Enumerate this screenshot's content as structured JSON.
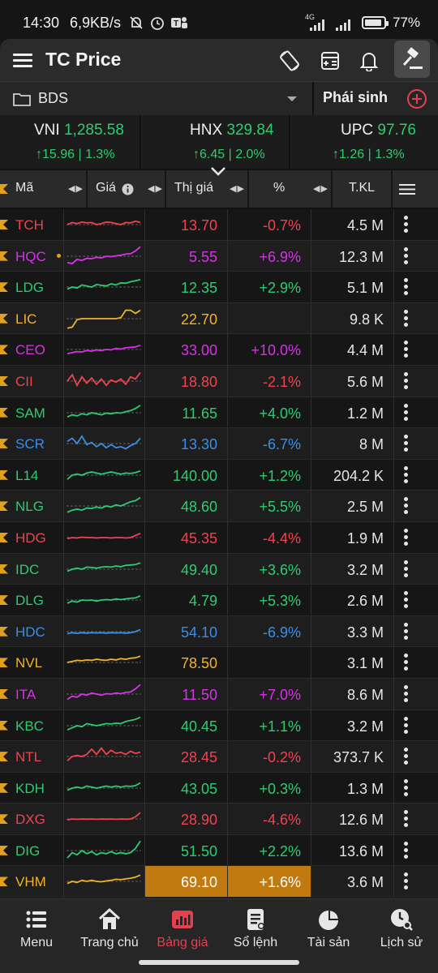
{
  "status_bar": {
    "time": "14:30",
    "speed": "6,9KB/s",
    "network": "4G",
    "battery": "77%"
  },
  "app_bar": {
    "title": "TC Price",
    "icons": [
      "menu-icon",
      "rotate-screen-icon",
      "calculator-icon",
      "bell-icon",
      "gavel-icon"
    ]
  },
  "group_bar": {
    "group_name": "BDS",
    "derivative_tab": "Phái sinh"
  },
  "indices": [
    {
      "name": "VNI",
      "value": "1,285.58",
      "change": "↑15.96 | 1.3%"
    },
    {
      "name": "HNX",
      "value": "329.84",
      "change": "↑6.45 | 2.0%"
    },
    {
      "name": "UPC",
      "value": "97.76",
      "change": "↑1.26 | 1.3%"
    }
  ],
  "table": {
    "headers": {
      "code": "Mã",
      "price_chart": "Giá",
      "market_price": "Thị giá",
      "pct": "%",
      "volume": "T.KL"
    },
    "rows": [
      {
        "code": "TCH",
        "price": "13.70",
        "pct": "-0.7%",
        "vol": "4.5 M",
        "color": "#f0434f",
        "trend": [
          0.5,
          0.6,
          0.55,
          0.62,
          0.58,
          0.6,
          0.5,
          0.55,
          0.62,
          0.6,
          0.55,
          0.5,
          0.6,
          0.58,
          0.66,
          0.6
        ]
      },
      {
        "code": "HQC",
        "price": "5.55",
        "pct": "+6.9%",
        "vol": "12.3 M",
        "color": "#d633e8",
        "dot": true,
        "trend": [
          0.2,
          0.15,
          0.35,
          0.3,
          0.4,
          0.38,
          0.45,
          0.42,
          0.5,
          0.48,
          0.52,
          0.55,
          0.6,
          0.62,
          0.75,
          0.95
        ]
      },
      {
        "code": "LDG",
        "price": "12.35",
        "pct": "+2.9%",
        "vol": "5.1 M",
        "color": "#2ecc71",
        "trend": [
          0.4,
          0.5,
          0.45,
          0.6,
          0.55,
          0.5,
          0.62,
          0.58,
          0.55,
          0.65,
          0.6,
          0.7,
          0.68,
          0.75,
          0.8,
          0.85
        ]
      },
      {
        "code": "LIC",
        "price": "22.70",
        "pct": "",
        "vol": "9.8 K",
        "color": "#f0b429",
        "trend": [
          0.05,
          0.1,
          0.45,
          0.5,
          0.5,
          0.5,
          0.5,
          0.5,
          0.5,
          0.5,
          0.5,
          0.55,
          0.9,
          0.9,
          0.75,
          0.9
        ]
      },
      {
        "code": "CEO",
        "price": "33.00",
        "pct": "+10.0%",
        "vol": "4.4 M",
        "color": "#d633e8",
        "trend": [
          0.3,
          0.35,
          0.4,
          0.38,
          0.45,
          0.42,
          0.48,
          0.45,
          0.5,
          0.48,
          0.55,
          0.52,
          0.58,
          0.6,
          0.62,
          0.7
        ]
      },
      {
        "code": "CII",
        "price": "18.80",
        "pct": "-2.1%",
        "vol": "5.6 M",
        "color": "#f0434f",
        "trend": [
          0.5,
          0.8,
          0.3,
          0.7,
          0.4,
          0.65,
          0.35,
          0.6,
          0.3,
          0.55,
          0.45,
          0.6,
          0.35,
          0.7,
          0.6,
          0.9
        ]
      },
      {
        "code": "SAM",
        "price": "11.65",
        "pct": "+4.0%",
        "vol": "1.2 M",
        "color": "#2ecc71",
        "trend": [
          0.3,
          0.4,
          0.35,
          0.45,
          0.4,
          0.5,
          0.45,
          0.4,
          0.48,
          0.45,
          0.5,
          0.48,
          0.55,
          0.6,
          0.7,
          0.85
        ]
      },
      {
        "code": "SCR",
        "price": "13.30",
        "pct": "-6.7%",
        "vol": "8 M",
        "color": "#3a8ee6",
        "trend": [
          0.6,
          0.75,
          0.5,
          0.85,
          0.45,
          0.55,
          0.35,
          0.5,
          0.3,
          0.45,
          0.3,
          0.35,
          0.25,
          0.4,
          0.5,
          0.75
        ]
      },
      {
        "code": "L14",
        "price": "140.00",
        "pct": "+1.2%",
        "vol": "204.2 K",
        "color": "#2ecc71",
        "trend": [
          0.3,
          0.5,
          0.55,
          0.5,
          0.6,
          0.65,
          0.6,
          0.55,
          0.6,
          0.65,
          0.6,
          0.55,
          0.6,
          0.58,
          0.62,
          0.7
        ]
      },
      {
        "code": "NLG",
        "price": "48.60",
        "pct": "+5.5%",
        "vol": "2.5 M",
        "color": "#2ecc71",
        "trend": [
          0.2,
          0.3,
          0.35,
          0.3,
          0.4,
          0.38,
          0.45,
          0.4,
          0.5,
          0.45,
          0.55,
          0.5,
          0.6,
          0.7,
          0.75,
          0.9
        ]
      },
      {
        "code": "HDG",
        "price": "45.35",
        "pct": "-4.4%",
        "vol": "1.9 M",
        "color": "#f0434f",
        "trend": [
          0.45,
          0.5,
          0.48,
          0.52,
          0.5,
          0.5,
          0.48,
          0.5,
          0.5,
          0.48,
          0.5,
          0.5,
          0.48,
          0.5,
          0.6,
          0.7
        ]
      },
      {
        "code": "IDC",
        "price": "49.40",
        "pct": "+3.6%",
        "vol": "3.2 M",
        "color": "#2ecc71",
        "trend": [
          0.4,
          0.5,
          0.55,
          0.5,
          0.6,
          0.58,
          0.55,
          0.6,
          0.62,
          0.6,
          0.65,
          0.62,
          0.68,
          0.7,
          0.72,
          0.8
        ]
      },
      {
        "code": "DLG",
        "price": "4.79",
        "pct": "+5.3%",
        "vol": "2.6 M",
        "color": "#2ecc71",
        "trend": [
          0.35,
          0.45,
          0.4,
          0.5,
          0.48,
          0.5,
          0.45,
          0.5,
          0.52,
          0.5,
          0.55,
          0.52,
          0.55,
          0.58,
          0.6,
          0.7
        ]
      },
      {
        "code": "HDC",
        "price": "54.10",
        "pct": "-6.9%",
        "vol": "3.3 M",
        "color": "#3a8ee6",
        "trend": [
          0.4,
          0.45,
          0.42,
          0.45,
          0.43,
          0.45,
          0.44,
          0.45,
          0.43,
          0.45,
          0.44,
          0.45,
          0.43,
          0.45,
          0.5,
          0.6
        ]
      },
      {
        "code": "NVL",
        "price": "78.50",
        "pct": "",
        "vol": "3.1 M",
        "color": "#f0b429",
        "trend": [
          0.5,
          0.55,
          0.6,
          0.58,
          0.62,
          0.6,
          0.65,
          0.62,
          0.6,
          0.65,
          0.62,
          0.68,
          0.65,
          0.7,
          0.72,
          0.8
        ]
      },
      {
        "code": "ITA",
        "price": "11.50",
        "pct": "+7.0%",
        "vol": "8.6 M",
        "color": "#d633e8",
        "trend": [
          0.25,
          0.4,
          0.35,
          0.5,
          0.45,
          0.55,
          0.5,
          0.45,
          0.52,
          0.5,
          0.55,
          0.52,
          0.58,
          0.6,
          0.75,
          0.95
        ]
      },
      {
        "code": "KBC",
        "price": "40.45",
        "pct": "+1.1%",
        "vol": "3.2 M",
        "color": "#2ecc71",
        "trend": [
          0.3,
          0.4,
          0.5,
          0.45,
          0.6,
          0.55,
          0.5,
          0.55,
          0.6,
          0.58,
          0.62,
          0.6,
          0.7,
          0.75,
          0.8,
          0.9
        ]
      },
      {
        "code": "NTL",
        "price": "28.45",
        "pct": "-0.2%",
        "vol": "373.7 K",
        "color": "#f0434f",
        "trend": [
          0.3,
          0.5,
          0.55,
          0.5,
          0.6,
          0.85,
          0.6,
          0.9,
          0.6,
          0.8,
          0.65,
          0.7,
          0.6,
          0.75,
          0.65,
          0.7
        ]
      },
      {
        "code": "KDH",
        "price": "43.05",
        "pct": "+0.3%",
        "vol": "1.3 M",
        "color": "#2ecc71",
        "trend": [
          0.4,
          0.5,
          0.55,
          0.5,
          0.6,
          0.55,
          0.5,
          0.55,
          0.6,
          0.55,
          0.6,
          0.55,
          0.6,
          0.58,
          0.62,
          0.75
        ]
      },
      {
        "code": "DXG",
        "price": "28.90",
        "pct": "-4.6%",
        "vol": "12.6 M",
        "color": "#f0434f",
        "trend": [
          0.45,
          0.5,
          0.48,
          0.5,
          0.49,
          0.5,
          0.48,
          0.5,
          0.49,
          0.5,
          0.48,
          0.5,
          0.49,
          0.5,
          0.6,
          0.8
        ]
      },
      {
        "code": "DIG",
        "price": "51.50",
        "pct": "+2.2%",
        "vol": "13.6 M",
        "color": "#2ecc71",
        "trend": [
          0.15,
          0.4,
          0.3,
          0.5,
          0.35,
          0.45,
          0.3,
          0.4,
          0.35,
          0.45,
          0.35,
          0.4,
          0.35,
          0.4,
          0.6,
          0.95
        ]
      },
      {
        "code": "VHM",
        "price": "69.10",
        "pct": "+1.6%",
        "vol": "3.6 M",
        "color": "#f0b429",
        "highlight": true,
        "trend": [
          0.4,
          0.5,
          0.45,
          0.55,
          0.5,
          0.55,
          0.5,
          0.48,
          0.52,
          0.55,
          0.6,
          0.58,
          0.62,
          0.65,
          0.7,
          0.8
        ]
      }
    ]
  },
  "bottom_nav": [
    {
      "label": "Menu",
      "icon": "list-icon",
      "active": false
    },
    {
      "label": "Trang chủ",
      "icon": "home-icon",
      "active": false
    },
    {
      "label": "Bảng giá",
      "icon": "bar-chart-icon",
      "active": true
    },
    {
      "label": "Sổ lệnh",
      "icon": "order-book-icon",
      "active": false
    },
    {
      "label": "Tài sản",
      "icon": "pie-chart-icon",
      "active": false
    },
    {
      "label": "Lịch sử",
      "icon": "clock-search-icon",
      "active": false
    }
  ],
  "colors": {
    "up": "#2ecc71",
    "down": "#f0434f",
    "reference": "#f0b429",
    "ceiling": "#d633e8",
    "floor": "#3a8ee6",
    "accent": "#e5404f"
  }
}
